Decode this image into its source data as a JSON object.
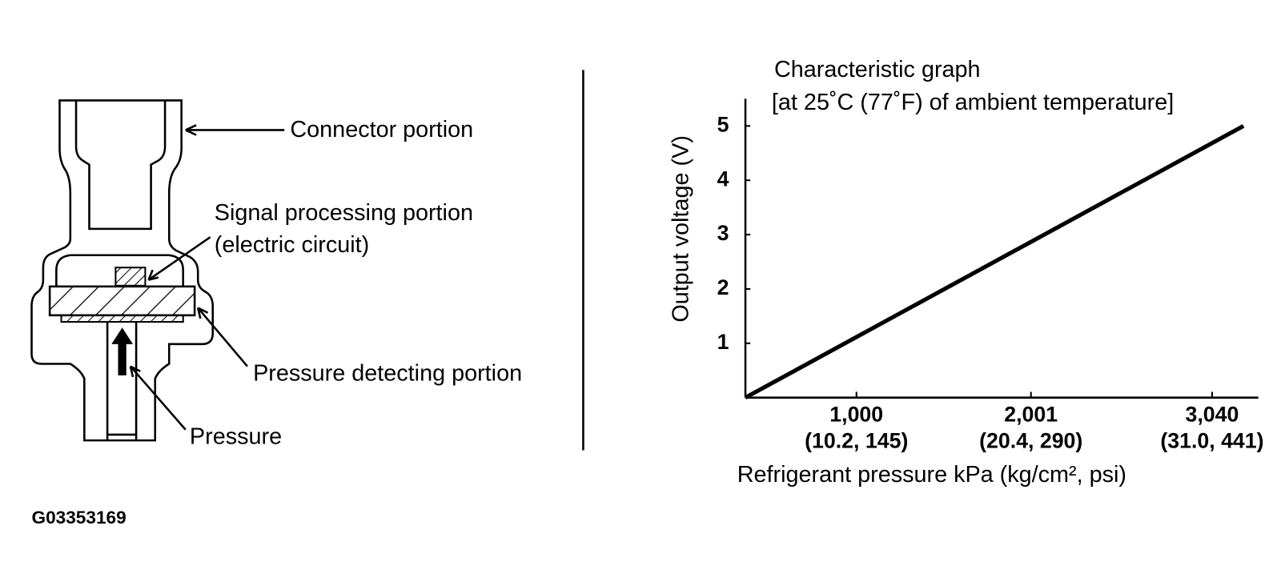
{
  "diagram": {
    "labels": {
      "connector": "Connector portion",
      "signal": "Signal processing portion",
      "signal_sub": "(electric circuit)",
      "pressure_detecting": "Pressure detecting portion",
      "pressure": "Pressure"
    },
    "figure_id": "G03353169"
  },
  "chart_data": {
    "type": "line",
    "title": "Characteristic graph",
    "subtitle": "[at 25˚C (77˚F) of ambient temperature]",
    "x_label": "Refrigerant pressure kPa (kg/cm², psi)",
    "y_label": "Output voltage (V)",
    "x": [
      363,
      3220
    ],
    "values": [
      0,
      5
    ],
    "color": "#000000",
    "xlim": [
      363,
      3305
    ],
    "ylim": [
      0,
      5.5
    ],
    "xticks": [
      {
        "value": 1000,
        "label": "1,000"
      },
      {
        "value": 2001,
        "label": "2,001"
      },
      {
        "value": 3040,
        "label": "3,040"
      }
    ],
    "xtick_sublabels": [
      "(10.2, 145)",
      "(20.4, 290)",
      "(31.0, 441)"
    ],
    "yticks": [
      1,
      2,
      3,
      4,
      5
    ]
  }
}
